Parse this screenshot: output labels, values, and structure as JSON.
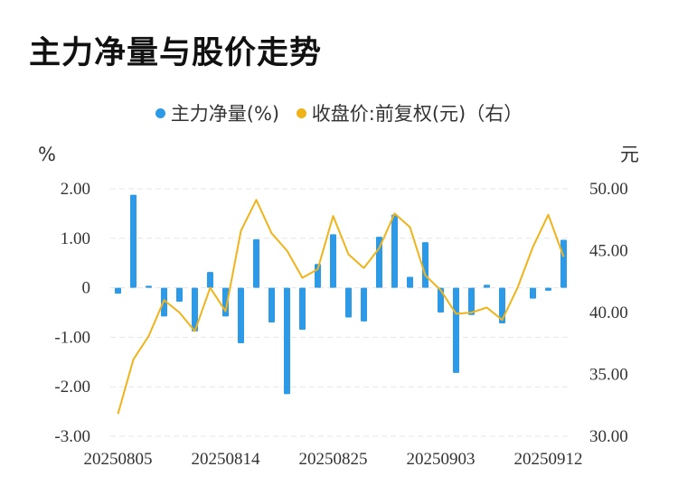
{
  "title": "主力净量与股价走势",
  "legend": [
    {
      "label": "主力净量(%)",
      "color": "#2d9ae8"
    },
    {
      "label": "收盘价:前复权(元)（右）",
      "color": "#f0b41b"
    }
  ],
  "chart_data": {
    "type": "bar+line",
    "left_unit": "%",
    "right_unit": "元",
    "left_ticks": [
      "2.00",
      "1.00",
      "0",
      "-1.00",
      "-2.00",
      "-3.00"
    ],
    "right_ticks": [
      "50.00",
      "45.00",
      "40.00",
      "35.00",
      "30.00"
    ],
    "x_tick_labels": [
      "20250805",
      "20250814",
      "20250825",
      "20250903",
      "20250912"
    ],
    "x_tick_indices": [
      0,
      7,
      14,
      21,
      28
    ],
    "left_range": [
      -3,
      2
    ],
    "right_range": [
      30,
      50
    ],
    "n_points": 30,
    "bar_color": "#2d9ae8",
    "line_color": "#f0b41b",
    "grid": true,
    "series": [
      {
        "name": "主力净量(%)",
        "type": "bar",
        "axis": "left",
        "values": [
          -0.12,
          1.88,
          0.04,
          -0.58,
          -0.28,
          -0.88,
          0.32,
          -0.58,
          -1.12,
          0.98,
          -0.7,
          -2.15,
          -0.85,
          0.48,
          1.08,
          -0.6,
          -0.68,
          1.03,
          1.48,
          0.22,
          0.92,
          -0.5,
          -1.72,
          -0.55,
          0.06,
          -0.72,
          null,
          -0.22,
          -0.06,
          0.97
        ]
      },
      {
        "name": "收盘价:前复权(元)（右）",
        "type": "line",
        "axis": "right",
        "values": [
          31.8,
          36.2,
          38.1,
          41.0,
          40.0,
          38.5,
          42.0,
          40.1,
          46.6,
          49.1,
          46.4,
          45.0,
          42.8,
          43.5,
          47.8,
          44.7,
          43.6,
          45.2,
          48.0,
          46.9,
          43.0,
          41.8,
          39.9,
          40.0,
          40.4,
          39.4,
          42.0,
          45.3,
          47.9,
          44.5
        ]
      }
    ]
  }
}
